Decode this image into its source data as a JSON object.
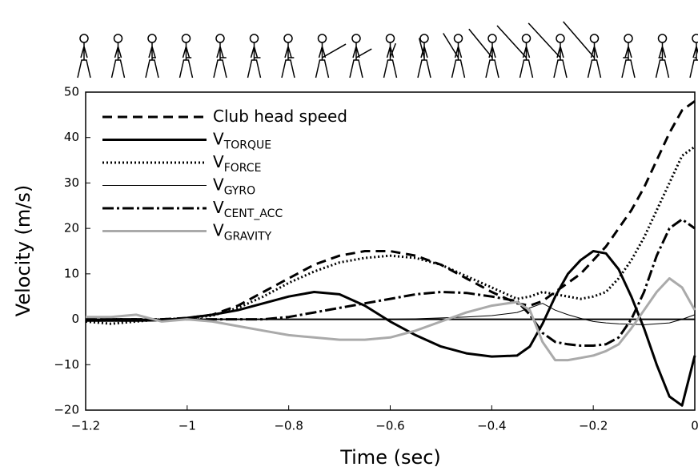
{
  "chart_data": {
    "type": "line",
    "xlabel": "Time (sec)",
    "ylabel": "Velocity (m/s)",
    "xlim": [
      -1.2,
      0
    ],
    "ylim": [
      -20,
      50
    ],
    "xticks": [
      {
        "value": -1.2,
        "label": "−1.2"
      },
      {
        "value": -1,
        "label": "−1"
      },
      {
        "value": -0.8,
        "label": "−0.8"
      },
      {
        "value": -0.6,
        "label": "−0.6"
      },
      {
        "value": -0.4,
        "label": "−0.4"
      },
      {
        "value": -0.2,
        "label": "−0.2"
      },
      0
    ],
    "yticks": [
      {
        "value": -20,
        "label": "−20"
      },
      {
        "value": -10,
        "label": "−10"
      },
      0,
      10,
      20,
      30,
      40,
      50
    ],
    "x": [
      -1.2,
      -1.15,
      -1.1,
      -1.05,
      -1,
      -0.95,
      -0.9,
      -0.85,
      -0.8,
      -0.75,
      -0.7,
      -0.65,
      -0.6,
      -0.55,
      -0.5,
      -0.45,
      -0.4,
      -0.35,
      -0.325,
      -0.3,
      -0.275,
      -0.25,
      -0.225,
      -0.2,
      -0.175,
      -0.15,
      -0.125,
      -0.1,
      -0.075,
      -0.05,
      -0.025,
      0
    ],
    "series": [
      {
        "name": "Club head speed",
        "color": "#000000",
        "width": 3,
        "dash": "12 7",
        "values": [
          0,
          0,
          0,
          0,
          0.3,
          1,
          3,
          6,
          9,
          12,
          14,
          15,
          15,
          14,
          12,
          9,
          6,
          3.5,
          3,
          4,
          6,
          8,
          10,
          13,
          16,
          20,
          24,
          29,
          35,
          41,
          46,
          48
        ]
      },
      {
        "name": "V",
        "subscript": "TORQUE",
        "color": "#000000",
        "width": 3,
        "dash": "none",
        "values": [
          -0.3,
          -0.3,
          -0.3,
          -0.2,
          0.3,
          1,
          2,
          3.5,
          5,
          6,
          5.5,
          3,
          -0.5,
          -3.5,
          -6,
          -7.5,
          -8.2,
          -8,
          -6,
          -1,
          5,
          10,
          13,
          15,
          14.5,
          11,
          5,
          -2,
          -10,
          -17,
          -19,
          -8
        ]
      },
      {
        "name": "V",
        "subscript": "FORCE",
        "color": "#000000",
        "width": 3,
        "dash": "2 3",
        "values": [
          -0.5,
          -1,
          -0.5,
          0,
          0.2,
          0.8,
          2.5,
          5,
          8,
          10.5,
          12.5,
          13.5,
          14,
          13.5,
          12,
          9.5,
          7,
          4.5,
          5,
          6,
          5.5,
          5,
          4.5,
          5,
          6,
          9,
          13,
          18,
          24,
          30,
          36,
          38
        ]
      },
      {
        "name": "V",
        "subscript": "GYRO",
        "color": "#000000",
        "width": 1,
        "dash": "none",
        "values": [
          0,
          0,
          0,
          0,
          0,
          0,
          0,
          0,
          0,
          0,
          0,
          0,
          0,
          0.1,
          0.3,
          0.5,
          0.8,
          1.5,
          2.5,
          3.5,
          2,
          1,
          0.2,
          -0.5,
          -0.8,
          -1,
          -1.1,
          -1.2,
          -1,
          -0.8,
          0,
          1
        ]
      },
      {
        "name": "V",
        "subscript": "CENT_ACC",
        "color": "#000000",
        "width": 3,
        "dash": "14 4 3 4",
        "values": [
          0,
          0,
          0,
          0,
          0,
          0,
          0,
          0,
          0.5,
          1.5,
          2.5,
          3.5,
          4.5,
          5.5,
          6,
          5.8,
          5,
          4,
          1,
          -3,
          -5,
          -5.5,
          -5.8,
          -5.8,
          -5.5,
          -4,
          0,
          6,
          14,
          20,
          22,
          20
        ]
      },
      {
        "name": "V",
        "subscript": "GRAVITY",
        "color": "#aaaaaa",
        "width": 3,
        "dash": "none",
        "values": [
          0.5,
          0.5,
          1,
          -0.5,
          0,
          -0.5,
          -1.5,
          -2.5,
          -3.5,
          -4,
          -4.5,
          -4.5,
          -4,
          -2.5,
          -0.5,
          1.5,
          3,
          3.8,
          2,
          -5,
          -9,
          -9,
          -8.5,
          -8,
          -7,
          -5.5,
          -2,
          2,
          6,
          9,
          7,
          2
        ]
      }
    ]
  }
}
